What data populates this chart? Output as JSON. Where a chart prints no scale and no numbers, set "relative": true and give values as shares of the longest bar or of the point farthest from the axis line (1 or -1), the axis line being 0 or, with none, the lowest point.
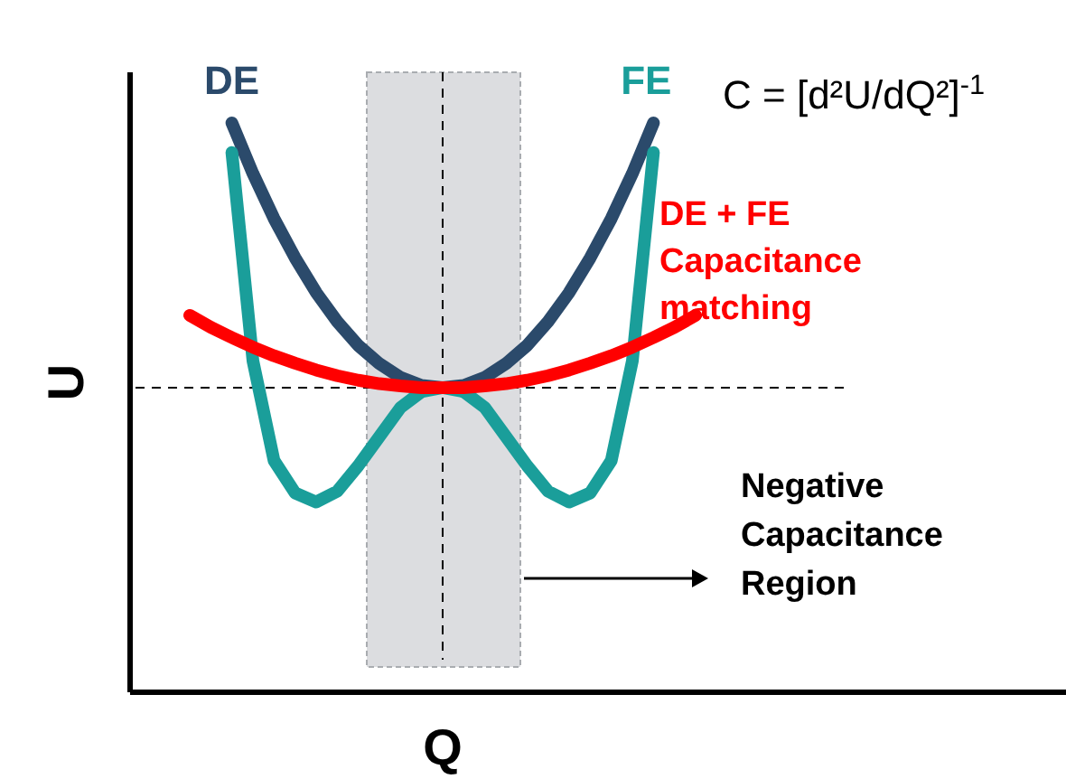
{
  "chart_data": {
    "type": "line",
    "relative": true,
    "xlabel": "Q",
    "ylabel": "U",
    "categories": [
      null,
      null,
      null,
      null,
      null,
      null,
      null,
      null,
      null,
      null,
      null,
      null,
      null,
      null,
      null,
      null,
      null,
      null,
      null,
      null,
      null,
      null,
      null,
      null,
      null
    ],
    "marker": "none",
    "line_style": "solid",
    "series": [
      {
        "name": "DE",
        "color": "#2b4a6b",
        "values": [
          null,
          null,
          1.0,
          0.911,
          0.832,
          0.763,
          0.702,
          0.651,
          0.609,
          0.577,
          0.553,
          0.539,
          0.535,
          0.539,
          0.553,
          0.577,
          0.609,
          0.651,
          0.702,
          0.763,
          0.832,
          0.911,
          1.0,
          null,
          null
        ]
      },
      {
        "name": "FE",
        "color": "#1a9e9a",
        "values": [
          null,
          null,
          0.948,
          0.582,
          0.407,
          0.35,
          0.334,
          0.353,
          0.398,
          0.449,
          0.5,
          0.528,
          0.535,
          0.528,
          0.5,
          0.449,
          0.398,
          0.353,
          0.334,
          0.35,
          0.407,
          0.582,
          0.948,
          null,
          null
        ]
      },
      {
        "name": "DE + FE Capacitance matching",
        "color": "#ff0000",
        "values": [
          0.662,
          0.641,
          0.623,
          0.606,
          0.591,
          0.578,
          0.566,
          0.556,
          0.548,
          0.542,
          0.538,
          0.535,
          0.535,
          0.535,
          0.538,
          0.542,
          0.548,
          0.556,
          0.566,
          0.578,
          0.591,
          0.606,
          0.623,
          0.641,
          0.662
        ]
      }
    ],
    "ref_lines": [
      {
        "axis": "y",
        "value": 0.535,
        "line_style": "dashed",
        "color": "#000000"
      }
    ],
    "annotations": [
      "C = [d²U/dQ²]$^{-1}$",
      "Negative Capacitance Region"
    ]
  }
}
